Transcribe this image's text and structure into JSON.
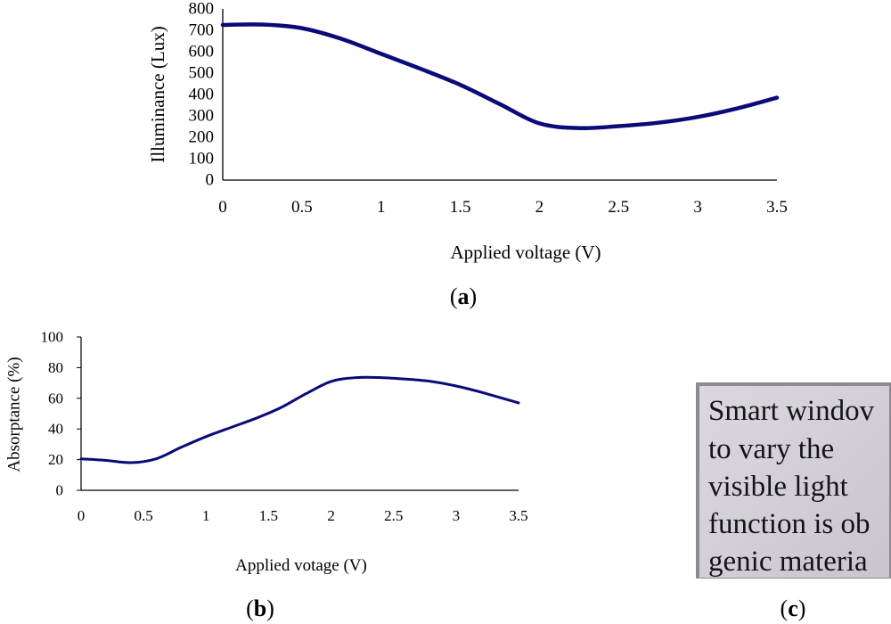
{
  "chart_data": [
    {
      "panel": "(a)",
      "panel_letter": "a",
      "type": "line",
      "xlabel": "Applied voltage (V)",
      "ylabel": "Illuminance (Lux)",
      "xlim": [
        0,
        3.5
      ],
      "ylim": [
        0,
        800
      ],
      "x_ticks": [
        "0",
        "0.5",
        "1",
        "1.5",
        "2",
        "2.5",
        "3",
        "3.5"
      ],
      "y_ticks": [
        "0",
        "100",
        "200",
        "300",
        "400",
        "500",
        "600",
        "700",
        "800"
      ],
      "series": [
        {
          "name": "Illuminance",
          "color": "#0a0a78",
          "x": [
            0,
            0.25,
            0.5,
            0.75,
            1.0,
            1.25,
            1.5,
            1.75,
            2.0,
            2.25,
            2.5,
            2.75,
            3.0,
            3.25,
            3.5
          ],
          "y": [
            725,
            727,
            710,
            660,
            590,
            520,
            445,
            355,
            265,
            243,
            252,
            268,
            295,
            335,
            385
          ]
        }
      ]
    },
    {
      "panel": "(b)",
      "panel_letter": "b",
      "type": "line",
      "xlabel": "Applied votage (V)",
      "ylabel": "Absorptance (%)",
      "xlim": [
        0,
        3.5
      ],
      "ylim": [
        0,
        100
      ],
      "x_ticks": [
        "0",
        "0.5",
        "1",
        "1.5",
        "2",
        "2.5",
        "3",
        "3.5"
      ],
      "y_ticks": [
        "0",
        "20",
        "40",
        "60",
        "80",
        "100"
      ],
      "series": [
        {
          "name": "Absorptance",
          "color": "#0a0a78",
          "x": [
            0,
            0.2,
            0.4,
            0.6,
            0.8,
            1.0,
            1.2,
            1.4,
            1.6,
            1.8,
            2.0,
            2.2,
            2.4,
            2.6,
            2.8,
            3.0,
            3.2,
            3.5
          ],
          "y": [
            20.5,
            19.5,
            18,
            20.5,
            28,
            35,
            41,
            47,
            54,
            63,
            71,
            73.5,
            73.5,
            72.5,
            71,
            68,
            64,
            57
          ]
        }
      ]
    }
  ],
  "photo": {
    "panel": "(c)",
    "panel_letter": "c",
    "lines": [
      "Smart windov",
      "to  vary  the",
      "visible  light",
      "function is ob",
      "genic materia"
    ]
  }
}
